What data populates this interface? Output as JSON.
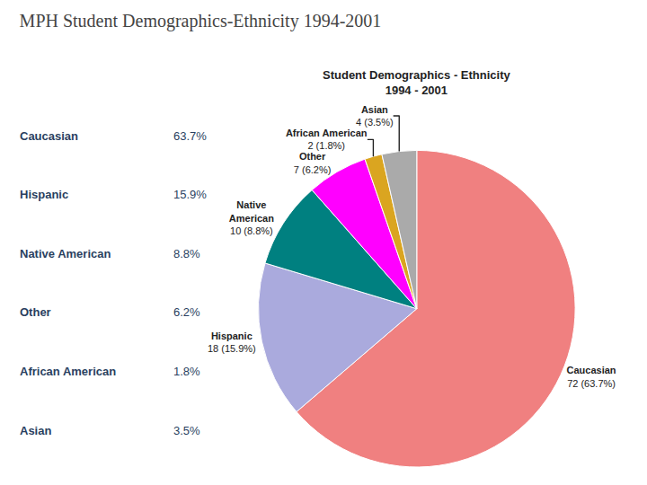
{
  "chart_data": {
    "type": "pie",
    "title": "MPH Student Demographics-Ethnicity 1994-2001",
    "subtitle": "Student Demographics - Ethnicity\n1994 - 2001",
    "categories": [
      "Caucasian",
      "Hispanic",
      "Native American",
      "Other",
      "African American",
      "Asian"
    ],
    "slice_labels": [
      "Caucasian",
      "Hispanic",
      "Native\nAmerican",
      "Other",
      "African American",
      "Asian"
    ],
    "values": [
      72,
      18,
      10,
      7,
      2,
      4
    ],
    "value_labels": [
      "72 (63.7%)",
      "18 (15.9%)",
      "10 (8.8%)",
      "7 (6.2%)",
      "2 (1.8%)",
      "4 (3.5%)"
    ],
    "shares": [
      63.7,
      15.9,
      8.8,
      6.2,
      1.8,
      3.5
    ],
    "share_labels": [
      "63.7%",
      "15.9%",
      "8.8%",
      "6.2%",
      "1.8%",
      "3.5%"
    ],
    "colors": [
      "#F08080",
      "#AAAADD",
      "#008080",
      "#FF00FF",
      "#DAA520",
      "#AAAAAA"
    ],
    "data_labels": true
  }
}
